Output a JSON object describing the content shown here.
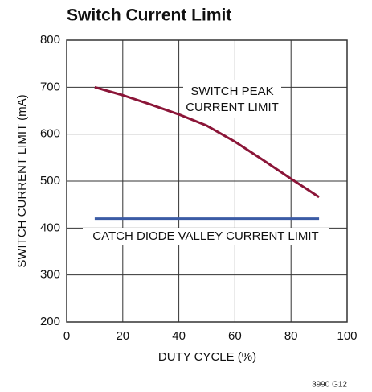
{
  "chart_data": {
    "type": "line",
    "title": "Switch Current Limit",
    "xlabel": "DUTY CYCLE (%)",
    "ylabel": "SWITCH CURRENT LIMIT (mA)",
    "x": [
      10,
      20,
      30,
      40,
      50,
      60,
      70,
      80,
      90
    ],
    "series": [
      {
        "color": "#8b1538",
        "values": [
          700,
          683,
          663,
          642,
          618,
          584,
          545,
          505,
          466
        ]
      },
      {
        "color": "#3b5ba5",
        "values": [
          420,
          420,
          420,
          420,
          420,
          420,
          420,
          420,
          420
        ]
      }
    ],
    "annotations": [
      "SWITCH PEAK",
      "CURRENT LIMIT",
      "CATCH DIODE VALLEY CURRENT LIMIT"
    ],
    "figure_id": "3990 G12",
    "xlim": [
      0,
      100
    ],
    "xticks": [
      0,
      20,
      40,
      60,
      80,
      100
    ],
    "ylim": [
      200,
      800
    ],
    "yticks": [
      200,
      300,
      400,
      500,
      600,
      700,
      800
    ],
    "grid": true
  }
}
